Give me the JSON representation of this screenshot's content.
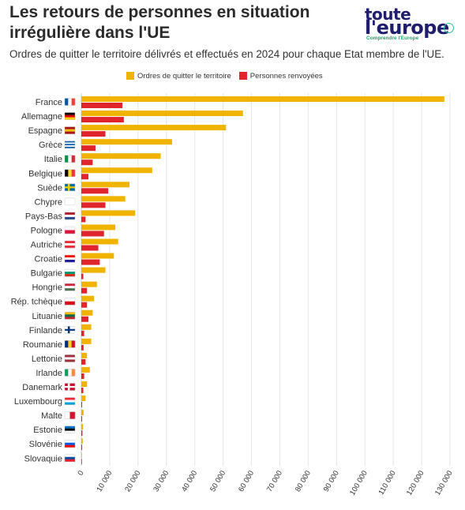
{
  "header": {
    "title": "Les retours de personnes en situation irrégulière dans l'UE",
    "subtitle": "Ordres de quitter le territoire délivrés et effectués en 2024 pour chaque Etat membre de l'UE."
  },
  "logo": {
    "line1": "toute",
    "line2": "l'europe",
    "tagline": "Comprendre l'Europe"
  },
  "chart_data": {
    "type": "bar",
    "orientation": "horizontal",
    "title": "Les retours de personnes en situation irrégulière dans l'UE",
    "subtitle": "Ordres de quitter le territoire délivrés et effectués en 2024 pour chaque Etat membre de l'UE.",
    "xlabel": "",
    "ylabel": "",
    "xlim": [
      0,
      130000
    ],
    "x_ticks": [
      "0",
      "10 000",
      "20 000",
      "30 000",
      "40 000",
      "50 000",
      "60 000",
      "70 000",
      "80 000",
      "90 000",
      "100 000",
      "110 000",
      "120 000",
      "130 000"
    ],
    "grid": true,
    "legend_position": "top",
    "categories": [
      "France",
      "Allemagne",
      "Espagne",
      "Grèce",
      "Italie",
      "Belgique",
      "Suède",
      "Chypre",
      "Pays-Bas",
      "Pologne",
      "Autriche",
      "Croatie",
      "Bulgarie",
      "Hongrie",
      "Rép. tchèque",
      "Lituanie",
      "Finlande",
      "Roumanie",
      "Lettonie",
      "Irlande",
      "Danemark",
      "Luxembourg",
      "Malte",
      "Estonie",
      "Slovénie",
      "Slovaquie"
    ],
    "flags": [
      {
        "type": "v",
        "colors": [
          "#0055a4",
          "#ffffff",
          "#ef4135"
        ]
      },
      {
        "type": "h",
        "colors": [
          "#000000",
          "#dd0000",
          "#ffce00"
        ]
      },
      {
        "type": "h",
        "colors": [
          "#aa151b",
          "#f1bf00",
          "#aa151b"
        ]
      },
      {
        "type": "h",
        "colors": [
          "#0d5eaf",
          "#ffffff",
          "#0d5eaf",
          "#ffffff",
          "#0d5eaf"
        ]
      },
      {
        "type": "v",
        "colors": [
          "#009246",
          "#ffffff",
          "#ce2b37"
        ]
      },
      {
        "type": "v",
        "colors": [
          "#000000",
          "#fdda24",
          "#ef3340"
        ]
      },
      {
        "type": "cross",
        "colors": [
          "#006aa7",
          "#fecc00"
        ]
      },
      {
        "type": "h",
        "colors": [
          "#ffffff",
          "#ffffff",
          "#ffffff"
        ]
      },
      {
        "type": "h",
        "colors": [
          "#ae1c28",
          "#ffffff",
          "#21468b"
        ]
      },
      {
        "type": "h",
        "colors": [
          "#ffffff",
          "#dc143c"
        ]
      },
      {
        "type": "h",
        "colors": [
          "#ed2939",
          "#ffffff",
          "#ed2939"
        ]
      },
      {
        "type": "h",
        "colors": [
          "#ff0000",
          "#ffffff",
          "#171796"
        ]
      },
      {
        "type": "h",
        "colors": [
          "#ffffff",
          "#00966e",
          "#d62612"
        ]
      },
      {
        "type": "h",
        "colors": [
          "#ce2939",
          "#ffffff",
          "#477050"
        ]
      },
      {
        "type": "h",
        "colors": [
          "#ffffff",
          "#d7141a"
        ]
      },
      {
        "type": "h",
        "colors": [
          "#fdb913",
          "#006a44",
          "#c1272d"
        ]
      },
      {
        "type": "cross",
        "colors": [
          "#ffffff",
          "#003580"
        ]
      },
      {
        "type": "v",
        "colors": [
          "#002b7f",
          "#fcd116",
          "#ce1126"
        ]
      },
      {
        "type": "h",
        "colors": [
          "#9e3039",
          "#ffffff",
          "#9e3039"
        ]
      },
      {
        "type": "v",
        "colors": [
          "#169b62",
          "#ffffff",
          "#ff883e"
        ]
      },
      {
        "type": "cross",
        "colors": [
          "#c8102e",
          "#ffffff"
        ]
      },
      {
        "type": "h",
        "colors": [
          "#ed2939",
          "#ffffff",
          "#00a1de"
        ]
      },
      {
        "type": "v",
        "colors": [
          "#ffffff",
          "#cf142b"
        ]
      },
      {
        "type": "h",
        "colors": [
          "#0072ce",
          "#000000",
          "#ffffff"
        ]
      },
      {
        "type": "h",
        "colors": [
          "#ffffff",
          "#005ce5",
          "#ff0000"
        ]
      },
      {
        "type": "h",
        "colors": [
          "#ffffff",
          "#0b4ea2",
          "#ee1c25"
        ]
      }
    ],
    "series": [
      {
        "name": "Ordres de quitter le territoire",
        "color": "#f0b400",
        "values": [
          128000,
          57000,
          51000,
          32000,
          28000,
          25000,
          17000,
          15500,
          19000,
          12000,
          13000,
          11500,
          8500,
          5500,
          4500,
          4000,
          3500,
          3500,
          2000,
          3000,
          2000,
          1500,
          800,
          600,
          500,
          100
        ]
      },
      {
        "name": "Personnes renvoyées",
        "color": "#e0242b",
        "values": [
          14500,
          15000,
          8500,
          5000,
          4000,
          2500,
          9500,
          8500,
          1500,
          8000,
          6000,
          6500,
          700,
          2000,
          2000,
          2500,
          1000,
          800,
          1500,
          1000,
          700,
          300,
          300,
          400,
          300,
          100
        ]
      }
    ]
  }
}
